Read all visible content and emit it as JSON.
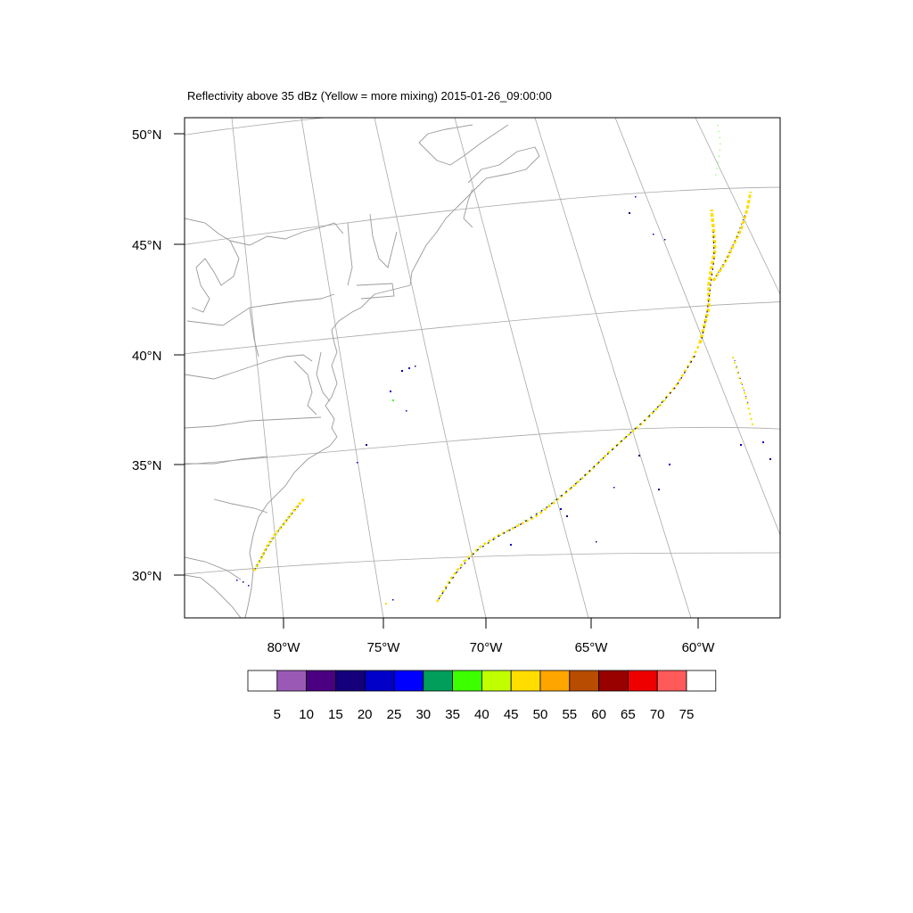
{
  "title": "Reflectivity above 35 dBz (Yellow = more mixing) 2015-01-26_09:00:00",
  "lat_labels": [
    "50°N",
    "45°N",
    "40°N",
    "35°N",
    "30°N"
  ],
  "lon_labels": [
    "80°W",
    "75°W",
    "70°W",
    "65°W",
    "60°W"
  ],
  "colorbar": {
    "colors": [
      "#ffffff",
      "#9b59b6",
      "#4b0082",
      "#14007a",
      "#0000c8",
      "#0000ff",
      "#009e5a",
      "#3cff00",
      "#bfff00",
      "#ffdd00",
      "#ffa500",
      "#b84c00",
      "#990000",
      "#ee0000",
      "#ff5a5a",
      "#ffffff"
    ],
    "labels": [
      "5",
      "10",
      "15",
      "20",
      "25",
      "30",
      "35",
      "40",
      "45",
      "50",
      "55",
      "60",
      "65",
      "70",
      "75"
    ]
  }
}
